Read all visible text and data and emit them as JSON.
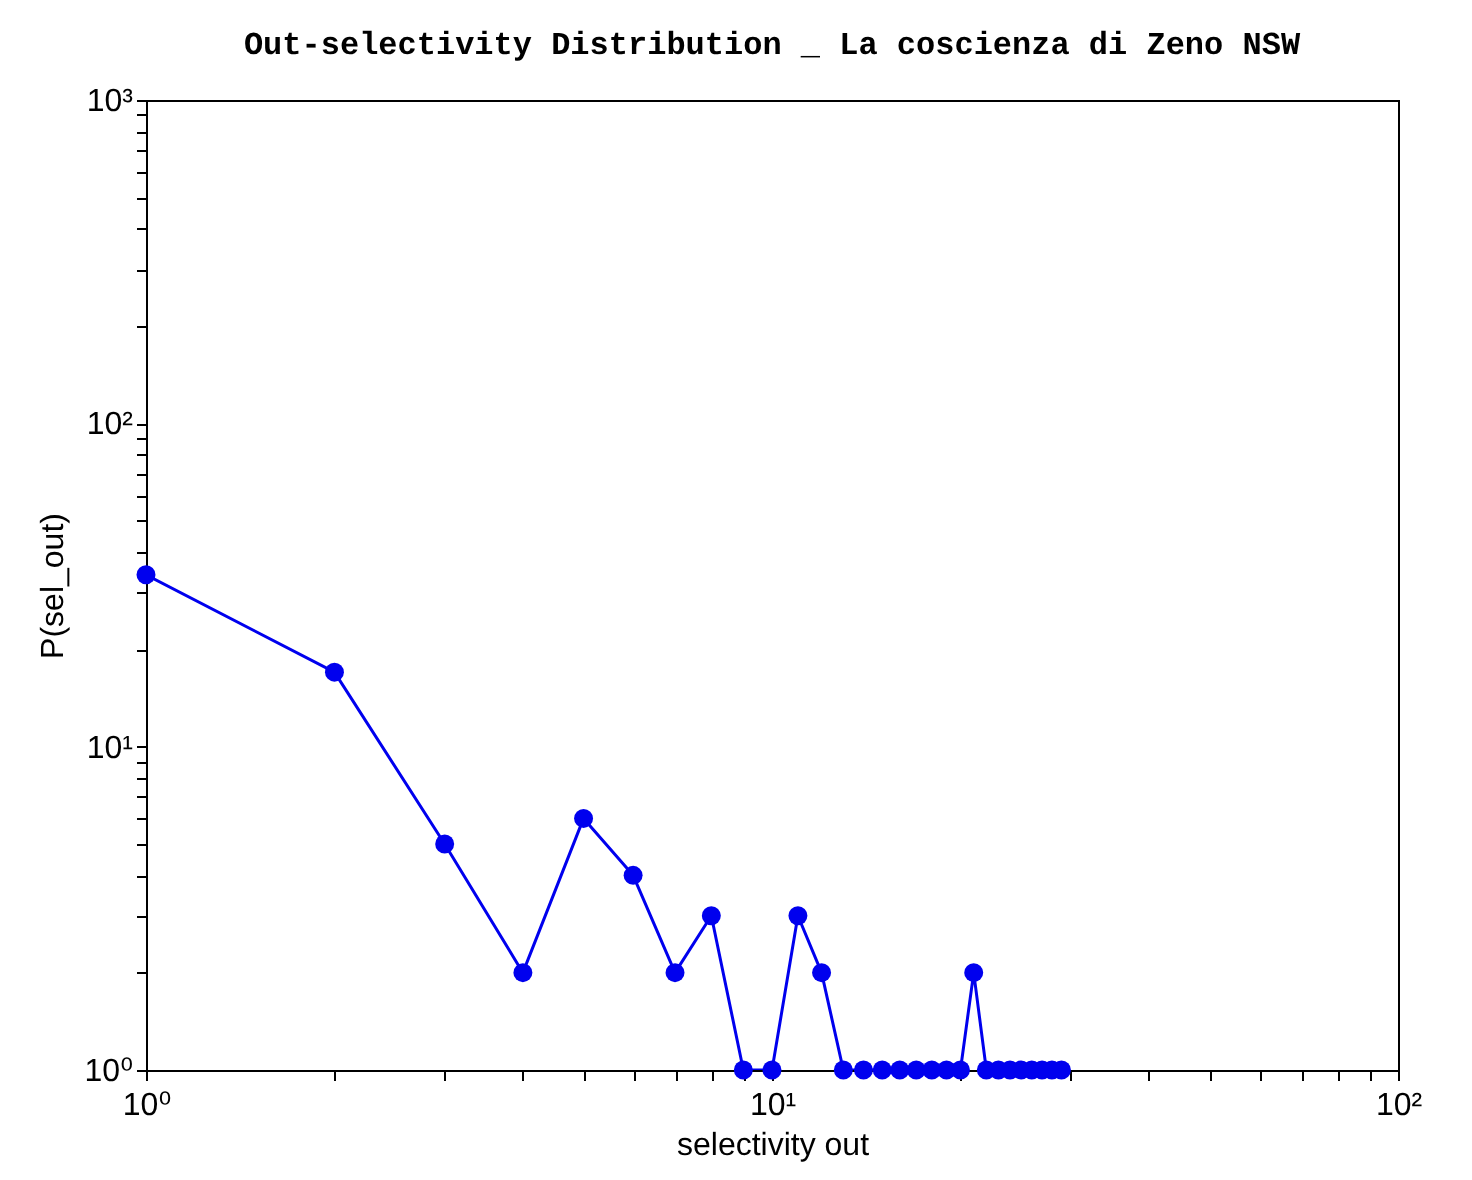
{
  "chart_data": {
    "type": "line",
    "title": "Out-selectivity Distribution _ La coscienza di Zeno NSW",
    "xlabel": "selectivity out",
    "ylabel": "P(sel_out)",
    "x": [
      1,
      2,
      3,
      4,
      5,
      6,
      7,
      8,
      9,
      10,
      11,
      12,
      13,
      14,
      15,
      16,
      17,
      18,
      19,
      20,
      21,
      22,
      23,
      24,
      25,
      26,
      27,
      28,
      29
    ],
    "series": [
      {
        "color": "#0000ee",
        "values": [
          34,
          17,
          5,
          2,
          6,
          4,
          2,
          3,
          1,
          1,
          3,
          2,
          1,
          1,
          1,
          1,
          1,
          1,
          1,
          1,
          2,
          1,
          1,
          1,
          1,
          1,
          1,
          1,
          1
        ]
      }
    ],
    "log": "xy",
    "xlim": [
      1,
      100
    ],
    "ylim": [
      1,
      1000
    ],
    "xticks": [
      {
        "value": 1,
        "label": "10⁰"
      },
      {
        "value": 2,
        "label": null
      },
      {
        "value": 3,
        "label": null
      },
      {
        "value": 4,
        "label": null
      },
      {
        "value": 5,
        "label": null
      },
      {
        "value": 6,
        "label": null
      },
      {
        "value": 7,
        "label": null
      },
      {
        "value": 8,
        "label": null
      },
      {
        "value": 9,
        "label": null
      },
      {
        "value": 10,
        "label": "10¹"
      },
      {
        "value": 20,
        "label": null
      },
      {
        "value": 30,
        "label": null
      },
      {
        "value": 40,
        "label": null
      },
      {
        "value": 50,
        "label": null
      },
      {
        "value": 60,
        "label": null
      },
      {
        "value": 70,
        "label": null
      },
      {
        "value": 80,
        "label": null
      },
      {
        "value": 90,
        "label": null
      },
      {
        "value": 100,
        "label": "10²"
      }
    ],
    "yticks": [
      {
        "value": 1,
        "label": "10⁰"
      },
      {
        "value": 2,
        "label": null
      },
      {
        "value": 3,
        "label": null
      },
      {
        "value": 4,
        "label": null
      },
      {
        "value": 5,
        "label": null
      },
      {
        "value": 6,
        "label": null
      },
      {
        "value": 7,
        "label": null
      },
      {
        "value": 8,
        "label": null
      },
      {
        "value": 9,
        "label": null
      },
      {
        "value": 10,
        "label": "10¹"
      },
      {
        "value": 20,
        "label": null
      },
      {
        "value": 30,
        "label": null
      },
      {
        "value": 40,
        "label": null
      },
      {
        "value": 50,
        "label": null
      },
      {
        "value": 60,
        "label": null
      },
      {
        "value": 70,
        "label": null
      },
      {
        "value": 80,
        "label": null
      },
      {
        "value": 90,
        "label": null
      },
      {
        "value": 100,
        "label": "10²"
      },
      {
        "value": 200,
        "label": null
      },
      {
        "value": 300,
        "label": null
      },
      {
        "value": 400,
        "label": null
      },
      {
        "value": 500,
        "label": null
      },
      {
        "value": 600,
        "label": null
      },
      {
        "value": 700,
        "label": null
      },
      {
        "value": 800,
        "label": null
      },
      {
        "value": 900,
        "label": null
      },
      {
        "value": 1000,
        "label": "10³"
      }
    ],
    "marker": "circle",
    "line_style": "solid",
    "grid": false,
    "legend": false
  }
}
